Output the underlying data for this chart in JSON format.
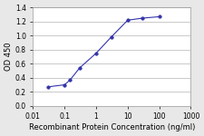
{
  "x": [
    0.03,
    0.1,
    0.15,
    0.3,
    1,
    3,
    10,
    30,
    100
  ],
  "y": [
    0.27,
    0.3,
    0.37,
    0.54,
    0.75,
    0.98,
    1.22,
    1.25,
    1.27
  ],
  "xlabel": "Recombinant Protein Concentration (ng/ml)",
  "ylabel": "OD 450",
  "xlim": [
    0.01,
    1000
  ],
  "ylim": [
    0,
    1.4
  ],
  "yticks": [
    0,
    0.2,
    0.4,
    0.6,
    0.8,
    1.0,
    1.2,
    1.4
  ],
  "xticks": [
    0.01,
    0.1,
    1,
    10,
    100,
    1000
  ],
  "xtick_labels": [
    "0.01",
    "0.1",
    "1",
    "10",
    "100",
    "1000"
  ],
  "line_color": "#3333aa",
  "marker_color": "#3333aa",
  "fig_bg_color": "#e8e8e8",
  "plot_bg": "#ffffff",
  "grid_color": "#c0c0c0",
  "label_fontsize": 6.0,
  "tick_fontsize": 5.5
}
